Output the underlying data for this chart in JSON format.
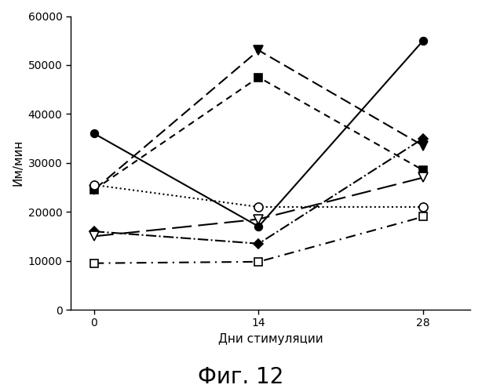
{
  "x": [
    0,
    14,
    28
  ],
  "series": [
    {
      "label": "filled_circle",
      "values": [
        36000,
        17000,
        55000
      ],
      "marker": "o",
      "markerfacecolor": "black",
      "markeredgecolor": "black",
      "linestyle": "-",
      "color": "black",
      "markersize": 7,
      "linewidth": 1.5
    },
    {
      "label": "filled_triangle_down_dashed",
      "values": [
        24500,
        53000,
        33500
      ],
      "marker": "v",
      "markerfacecolor": "black",
      "markeredgecolor": "black",
      "linestyle": "--",
      "color": "black",
      "markersize": 8,
      "linewidth": 1.5,
      "dashes": [
        7,
        3
      ]
    },
    {
      "label": "filled_square_dashed",
      "values": [
        24500,
        47500,
        28500
      ],
      "marker": "s",
      "markerfacecolor": "black",
      "markeredgecolor": "black",
      "linestyle": "--",
      "color": "black",
      "markersize": 7,
      "linewidth": 1.5,
      "dashes": [
        4,
        3
      ]
    },
    {
      "label": "open_circle_dotted",
      "values": [
        25500,
        21000,
        21000
      ],
      "marker": "o",
      "markerfacecolor": "white",
      "markeredgecolor": "black",
      "linestyle": ":",
      "color": "black",
      "markersize": 8,
      "linewidth": 1.5
    },
    {
      "label": "filled_diamond_dashdot",
      "values": [
        16000,
        13500,
        35000
      ],
      "marker": "D",
      "markerfacecolor": "black",
      "markeredgecolor": "black",
      "linestyle": "-.",
      "color": "black",
      "markersize": 6,
      "linewidth": 1.5
    },
    {
      "label": "open_triangle_down_longdash",
      "values": [
        15000,
        18500,
        27000
      ],
      "marker": "v",
      "markerfacecolor": "white",
      "markeredgecolor": "black",
      "linestyle": "--",
      "color": "black",
      "markersize": 8,
      "linewidth": 1.5,
      "dashes": [
        12,
        4
      ]
    },
    {
      "label": "open_square_dashdot",
      "values": [
        9500,
        9800,
        19000
      ],
      "marker": "s",
      "markerfacecolor": "white",
      "markeredgecolor": "black",
      "linestyle": "-.",
      "color": "black",
      "markersize": 7,
      "linewidth": 1.5,
      "dashes": [
        6,
        3,
        1,
        3
      ]
    }
  ],
  "xlabel": "Дни стимуляции",
  "ylabel": "Им/мин",
  "ylim": [
    0,
    60000
  ],
  "yticks": [
    0,
    10000,
    20000,
    30000,
    40000,
    50000,
    60000
  ],
  "ytick_labels": [
    "0",
    "10000",
    "20000",
    "30000",
    "40000",
    "50000",
    "60000"
  ],
  "xticks": [
    0,
    14,
    28
  ],
  "figcaption": "Фиг. 12",
  "background_color": "#ffffff",
  "xlabel_fontsize": 11,
  "ylabel_fontsize": 11,
  "tick_fontsize": 10,
  "caption_fontsize": 20
}
